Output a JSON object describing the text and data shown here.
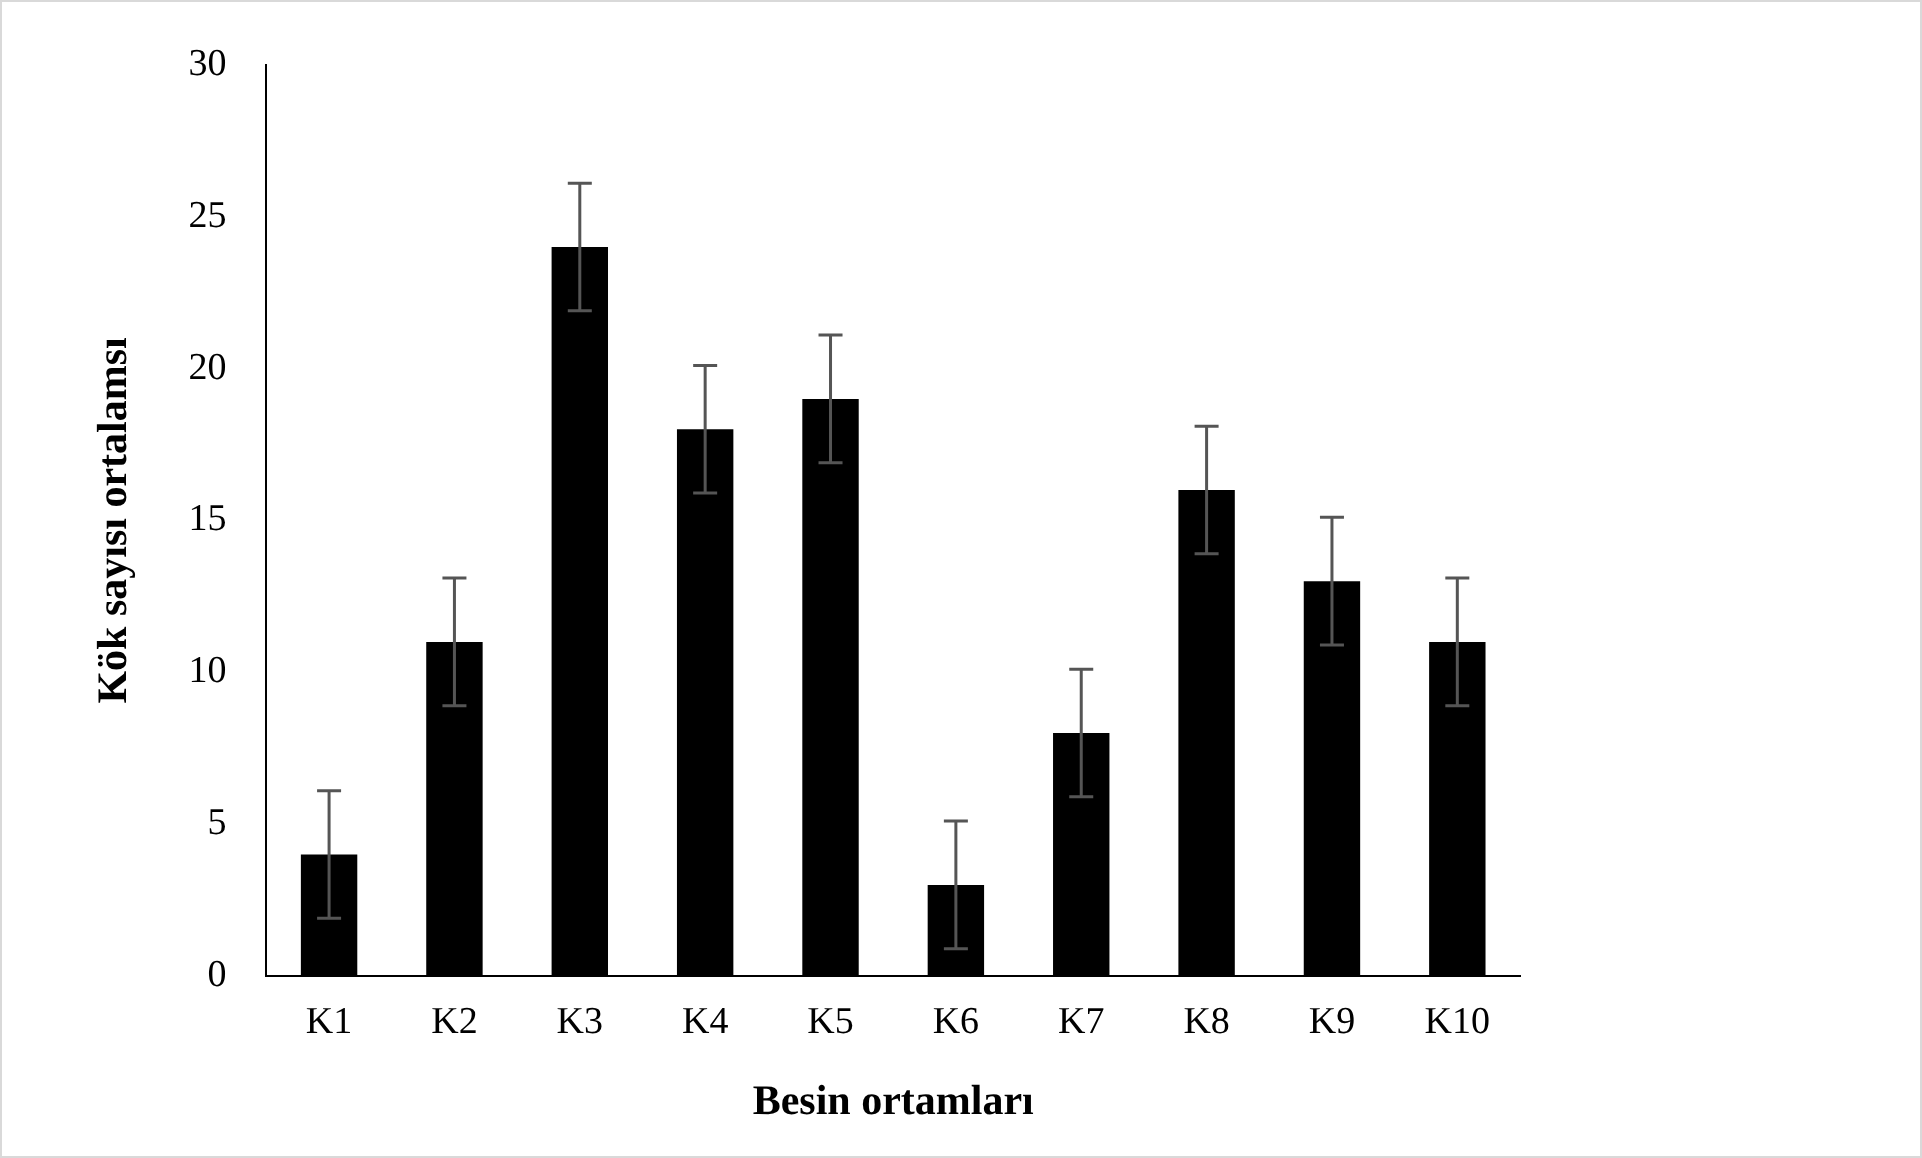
{
  "chart_data": {
    "type": "bar",
    "xlabel": "Besin ortamları",
    "ylabel": "Kök sayısı ortalamsı",
    "categories": [
      "K1",
      "K2",
      "K3",
      "K4",
      "K5",
      "K6",
      "K7",
      "K8",
      "K9",
      "K10"
    ],
    "values": [
      4,
      11,
      24,
      18,
      19,
      3,
      8,
      16,
      13,
      11
    ],
    "errors": [
      2.1,
      2.1,
      2.1,
      2.1,
      2.1,
      2.1,
      2.1,
      2.1,
      2.1,
      2.1
    ],
    "color": "#000000",
    "ylim": [
      0,
      30
    ],
    "yticks": [
      0,
      5,
      10,
      15,
      20,
      25,
      30
    ],
    "grid": false,
    "legend": false
  }
}
